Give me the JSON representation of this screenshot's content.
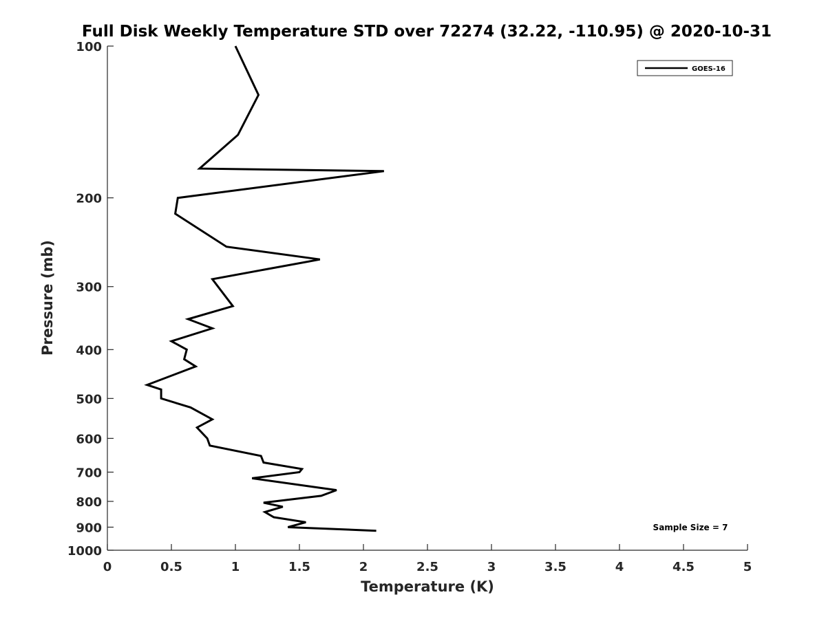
{
  "chart_data": {
    "type": "line",
    "title": "Full Disk Weekly Temperature STD over 72274 (32.22, -110.95) @ 2020-10-31",
    "xlabel": "Temperature (K)",
    "ylabel": "Pressure (mb)",
    "xlim": [
      0,
      5
    ],
    "ylim": [
      100,
      1000
    ],
    "yscale": "log",
    "y_reversed": true,
    "xticks": [
      0,
      0.5,
      1,
      1.5,
      2,
      2.5,
      3,
      3.5,
      4,
      4.5,
      5
    ],
    "xtick_labels": [
      "0",
      "0.5",
      "1",
      "1.5",
      "2",
      "2.5",
      "3",
      "3.5",
      "4",
      "4.5",
      "5"
    ],
    "yticks": [
      100,
      200,
      300,
      400,
      500,
      600,
      700,
      800,
      900,
      1000
    ],
    "ytick_labels": [
      "100",
      "200",
      "300",
      "400",
      "500",
      "600",
      "700",
      "800",
      "900",
      "1000"
    ],
    "grid": false,
    "legend_position": "top-right",
    "series": [
      {
        "name": "GOES-16",
        "color": "#000000",
        "points": [
          {
            "x": 1.0,
            "p": 100
          },
          {
            "x": 1.18,
            "p": 125
          },
          {
            "x": 1.02,
            "p": 150
          },
          {
            "x": 0.72,
            "p": 175
          },
          {
            "x": 2.16,
            "p": 177
          },
          {
            "x": 0.55,
            "p": 200
          },
          {
            "x": 0.53,
            "p": 215
          },
          {
            "x": 0.93,
            "p": 250
          },
          {
            "x": 1.66,
            "p": 265
          },
          {
            "x": 0.82,
            "p": 290
          },
          {
            "x": 0.98,
            "p": 328
          },
          {
            "x": 0.63,
            "p": 348
          },
          {
            "x": 0.82,
            "p": 363
          },
          {
            "x": 0.5,
            "p": 385
          },
          {
            "x": 0.62,
            "p": 400
          },
          {
            "x": 0.6,
            "p": 418
          },
          {
            "x": 0.69,
            "p": 432
          },
          {
            "x": 0.31,
            "p": 470
          },
          {
            "x": 0.42,
            "p": 480
          },
          {
            "x": 0.42,
            "p": 500
          },
          {
            "x": 0.65,
            "p": 521
          },
          {
            "x": 0.82,
            "p": 550
          },
          {
            "x": 0.7,
            "p": 571
          },
          {
            "x": 0.78,
            "p": 600
          },
          {
            "x": 0.8,
            "p": 620
          },
          {
            "x": 1.2,
            "p": 650
          },
          {
            "x": 1.22,
            "p": 670
          },
          {
            "x": 1.52,
            "p": 690
          },
          {
            "x": 1.5,
            "p": 700
          },
          {
            "x": 1.13,
            "p": 720
          },
          {
            "x": 1.79,
            "p": 760
          },
          {
            "x": 1.67,
            "p": 780
          },
          {
            "x": 1.22,
            "p": 805
          },
          {
            "x": 1.37,
            "p": 820
          },
          {
            "x": 1.23,
            "p": 840
          },
          {
            "x": 1.3,
            "p": 860
          },
          {
            "x": 1.55,
            "p": 880
          },
          {
            "x": 1.41,
            "p": 900
          },
          {
            "x": 2.1,
            "p": 915
          }
        ]
      }
    ],
    "annotation": "Sample Size = 7"
  }
}
